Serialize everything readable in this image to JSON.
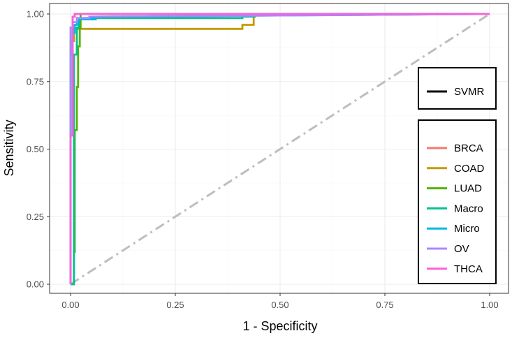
{
  "chart_data": {
    "type": "line",
    "xlabel": "1 - Specificity",
    "ylabel": "Sensitivity",
    "xlim": [
      0,
      1
    ],
    "ylim": [
      0,
      1
    ],
    "x_ticks": [
      "0.00",
      "0.25",
      "0.50",
      "0.75",
      "1.00"
    ],
    "y_ticks": [
      "0.00",
      "0.25",
      "0.50",
      "0.75",
      "1.00"
    ],
    "grid": true,
    "legend_position": "right",
    "diagonal": {
      "x": [
        0,
        1
      ],
      "y": [
        0,
        1
      ],
      "color": "#bebebe",
      "style": "dash-dot"
    },
    "linetype_legend": {
      "label": "SVMR"
    },
    "series": [
      {
        "name": "BRCA",
        "color": "#F8766D",
        "x": [
          0,
          0,
          0.005,
          0.005,
          0.01,
          0.01,
          1
        ],
        "y": [
          0,
          0.9,
          0.9,
          0.99,
          0.99,
          1,
          1
        ]
      },
      {
        "name": "COAD",
        "color": "#C49A00",
        "x": [
          0,
          0,
          0.008,
          0.008,
          0.02,
          0.02,
          0.41,
          0.41,
          0.437,
          0.437,
          1
        ],
        "y": [
          0,
          0.9,
          0.9,
          0.945,
          0.945,
          0.945,
          0.945,
          0.96,
          0.96,
          1,
          1
        ]
      },
      {
        "name": "LUAD",
        "color": "#53B400",
        "x": [
          0,
          0.008,
          0.008,
          0.01,
          0.01,
          0.015,
          0.015,
          0.018,
          0.018,
          0.022,
          0.022,
          0.024,
          0.024,
          1
        ],
        "y": [
          0,
          0,
          0.12,
          0.12,
          0.57,
          0.57,
          0.73,
          0.73,
          0.88,
          0.88,
          0.95,
          0.95,
          1,
          1
        ]
      },
      {
        "name": "Macro",
        "color": "#00C094",
        "x": [
          0,
          0.008,
          0.008,
          0.015,
          0.015,
          0.02,
          0.02,
          0.41,
          0.41,
          0.44,
          0.44,
          1
        ],
        "y": [
          0,
          0,
          0.85,
          0.85,
          0.95,
          0.95,
          0.985,
          0.985,
          0.99,
          0.99,
          1,
          1
        ]
      },
      {
        "name": "Micro",
        "color": "#00B6EB",
        "x": [
          0,
          0,
          0.005,
          0.005,
          0.01,
          0.01,
          0.015,
          0.015,
          0.02,
          0.02,
          0.06,
          0.06,
          1
        ],
        "y": [
          0,
          0.85,
          0.85,
          0.93,
          0.93,
          0.96,
          0.96,
          0.97,
          0.97,
          0.98,
          0.98,
          0.99,
          1
        ]
      },
      {
        "name": "OV",
        "color": "#A58AFF",
        "x": [
          0,
          0,
          0.005,
          0.005,
          0.015,
          0.015,
          0.045,
          0.045,
          1
        ],
        "y": [
          0,
          0.95,
          0.95,
          0.97,
          0.97,
          0.985,
          0.985,
          0.99,
          1
        ]
      },
      {
        "name": "THCA",
        "color": "#FB61D7",
        "x": [
          0,
          0,
          0.005,
          0.005,
          0.01,
          0.01,
          1
        ],
        "y": [
          0,
          0.55,
          0.55,
          0.99,
          0.99,
          1,
          1
        ]
      }
    ]
  }
}
